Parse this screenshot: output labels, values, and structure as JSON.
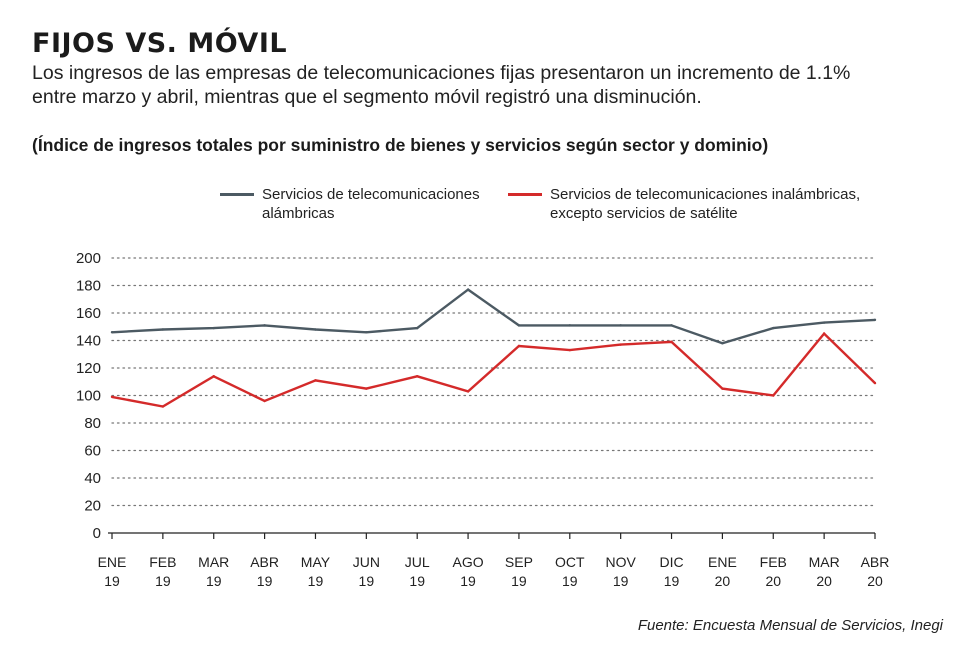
{
  "header": {
    "title": "FIJOS VS. MÓVIL",
    "subtitle": "Los ingresos de las empresas de telecomunicaciones fijas presentaron un incremento de 1.1% entre marzo y abril, mientras que el segmento móvil registró una disminución.",
    "chart_heading": "(Índice de ingresos totales por suministro de bienes y servicios según sector y dominio)"
  },
  "source": "Fuente: Encuesta Mensual de Servicios, Inegi",
  "colors": {
    "series_1": "#4c5a63",
    "series_2": "#d42a2a",
    "grid": "#777777",
    "axis": "#222222"
  },
  "chart_data": {
    "type": "line",
    "title": "",
    "xlabel": "",
    "ylabel": "",
    "categories": [
      [
        "ENE",
        "19"
      ],
      [
        "FEB",
        "19"
      ],
      [
        "MAR",
        "19"
      ],
      [
        "ABR",
        "19"
      ],
      [
        "MAY",
        "19"
      ],
      [
        "JUN",
        "19"
      ],
      [
        "JUL",
        "19"
      ],
      [
        "AGO",
        "19"
      ],
      [
        "SEP",
        "19"
      ],
      [
        "OCT",
        "19"
      ],
      [
        "NOV",
        "19"
      ],
      [
        "DIC",
        "19"
      ],
      [
        "ENE",
        "20"
      ],
      [
        "FEB",
        "20"
      ],
      [
        "MAR",
        "20"
      ],
      [
        "ABR",
        "20"
      ]
    ],
    "ylim": [
      0,
      200
    ],
    "yticks": [
      0,
      20,
      40,
      60,
      80,
      100,
      120,
      140,
      160,
      180,
      200
    ],
    "grid": "horizontal dotted",
    "legend_position": "top",
    "series": [
      {
        "name": "Servicios de telecomunicaciones alámbricas",
        "legend_lines": [
          "Servicios de telecomunicaciones",
          "alámbricas"
        ],
        "color": "#4c5a63",
        "values": [
          146,
          148,
          149,
          151,
          148,
          146,
          149,
          177,
          151,
          151,
          151,
          151,
          138,
          149,
          153,
          155
        ]
      },
      {
        "name": "Servicios de telecomunicaciones inalámbricas, excepto servicios de satélite",
        "legend_lines": [
          "Servicios de telecomunicaciones inalámbricas,",
          "excepto servicios de satélite"
        ],
        "color": "#d42a2a",
        "values": [
          99,
          92,
          114,
          96,
          111,
          105,
          114,
          103,
          136,
          133,
          137,
          139,
          105,
          100,
          145,
          109
        ]
      }
    ]
  }
}
